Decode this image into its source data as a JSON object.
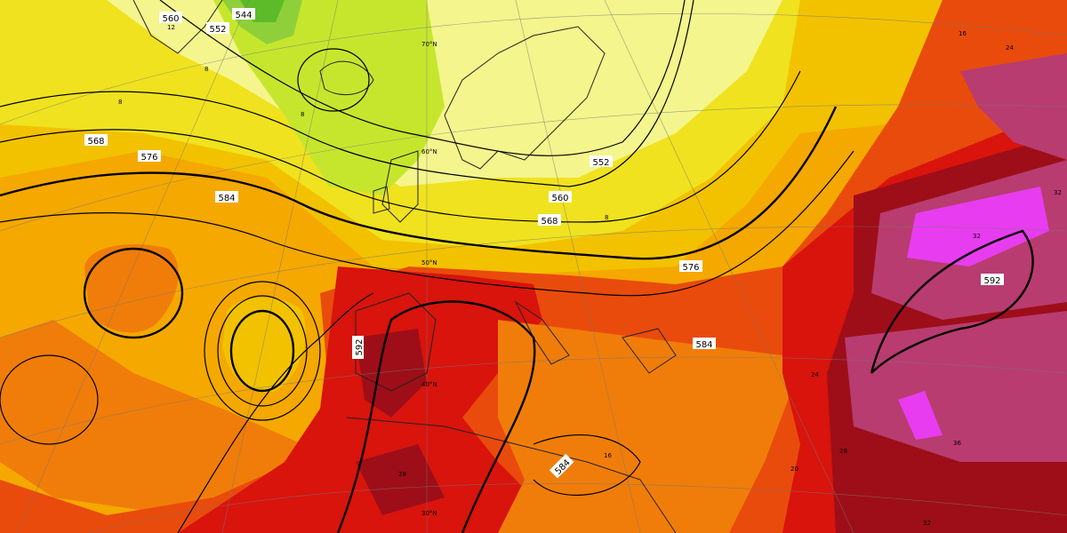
{
  "map": {
    "fill_colors": {
      "green_dark": "#5dbb2a",
      "green": "#8fd03a",
      "lime": "#c6e62e",
      "yellow_pale": "#f4f58c",
      "yellow": "#f0e21e",
      "gold": "#f2c200",
      "orange_light": "#f5a800",
      "orange": "#f07d0a",
      "red_orange": "#e94b0c",
      "red": "#d8140c",
      "dark_red": "#9e0e18",
      "maroon": "#6e0a22",
      "plum": "#b83c70",
      "magenta": "#e83cf0"
    },
    "contour_labels": [
      {
        "text": "544"
      },
      {
        "text": "552"
      },
      {
        "text": "560"
      },
      {
        "text": "568"
      },
      {
        "text": "576"
      },
      {
        "text": "584"
      },
      {
        "text": "552"
      },
      {
        "text": "560"
      },
      {
        "text": "568"
      },
      {
        "text": "576"
      },
      {
        "text": "584"
      },
      {
        "text": "592"
      },
      {
        "text": "592"
      },
      {
        "text": "584"
      }
    ],
    "temp_labels": [
      {
        "text": "12"
      },
      {
        "text": "8"
      },
      {
        "text": "8"
      },
      {
        "text": "8"
      },
      {
        "text": "8"
      },
      {
        "text": "16"
      },
      {
        "text": "24"
      },
      {
        "text": "28"
      },
      {
        "text": "28"
      },
      {
        "text": "32"
      },
      {
        "text": "32"
      },
      {
        "text": "32"
      },
      {
        "text": "36"
      },
      {
        "text": "16"
      },
      {
        "text": "20"
      },
      {
        "text": "24"
      }
    ],
    "grid_labels": {
      "lat60": "60°N",
      "lat50": "50°N",
      "lat40": "40°N",
      "lat30": "30°N",
      "lat70": "70°N"
    }
  }
}
